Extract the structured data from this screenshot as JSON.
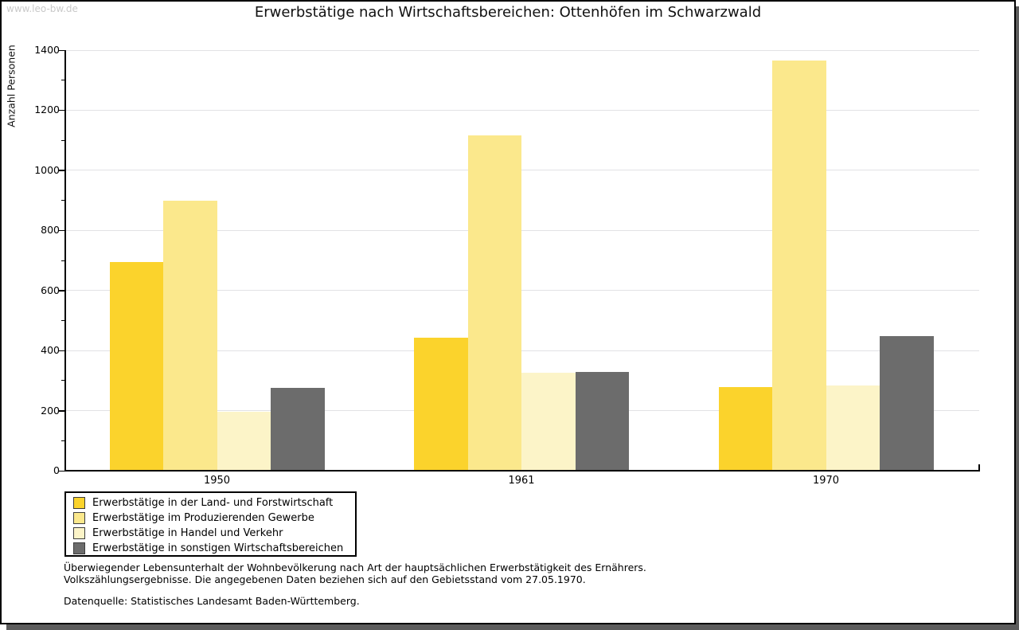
{
  "page": {
    "watermark": "www.leo-bw.de"
  },
  "chart_data": {
    "type": "bar",
    "title": "Erwerbstätige nach Wirtschaftsbereichen: Ottenhöfen im Schwarzwald",
    "xlabel": "",
    "ylabel": "Anzahl Personen",
    "ylim": [
      0,
      1400
    ],
    "yticks": [
      0,
      200,
      400,
      600,
      800,
      1000,
      1200,
      1400
    ],
    "yticks_minor_step": 100,
    "grid": true,
    "legend_position": "bottom-left",
    "categories": [
      "1950",
      "1961",
      "1970"
    ],
    "series": [
      {
        "name": "Erwerbstätige in der Land- und Forstwirtschaft",
        "color": "#FBD32C",
        "values": [
          695,
          442,
          278
        ]
      },
      {
        "name": "Erwerbstätige im Produzierenden Gewerbe",
        "color": "#FBE88C",
        "values": [
          900,
          1115,
          1365
        ]
      },
      {
        "name": "Erwerbstätige in Handel und Verkehr",
        "color": "#FCF4C8",
        "values": [
          195,
          325,
          285
        ]
      },
      {
        "name": "Erwerbstätige in sonstigen Wirtschaftsbereichen",
        "color": "#6C6C6C",
        "values": [
          275,
          330,
          447
        ]
      }
    ],
    "colors": {
      "gridline": "#E2E2E5",
      "axis": "#000000",
      "frame_shadow": "#5C5C5C",
      "watermark": "#C9C9C9"
    }
  },
  "footnotes": {
    "line1": "Überwiegender Lebensunterhalt der Wohnbevölkerung nach Art der hauptsächlichen Erwerbstätigkeit des Ernährers.",
    "line2": "Volkszählungsergebnisse. Die angegebenen Daten beziehen sich auf den Gebietsstand vom 27.05.1970.",
    "source": "Datenquelle: Statistisches Landesamt Baden-Württemberg."
  }
}
